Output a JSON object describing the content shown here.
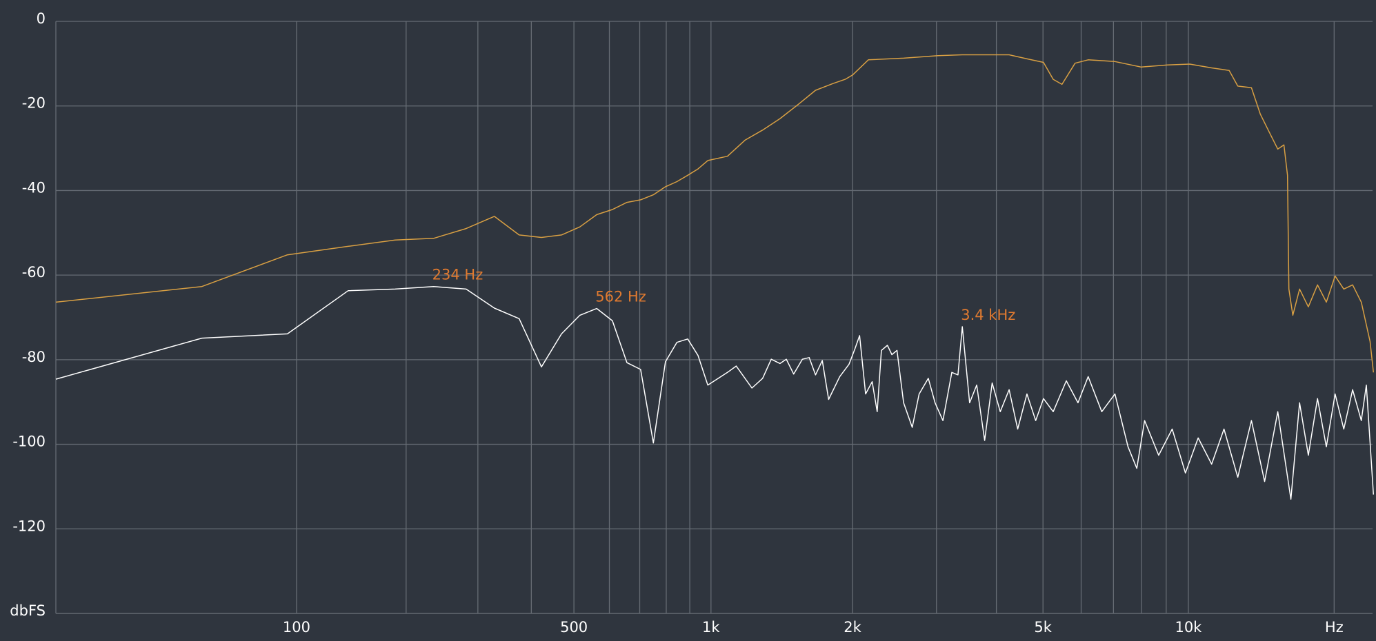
{
  "chart_data": {
    "type": "line",
    "xscale": "log",
    "xlim": [
      0,
      24000
    ],
    "ylim": [
      -140,
      0
    ],
    "xticks": [
      100,
      500,
      {
        "value": 1000,
        "label": "1k"
      },
      {
        "value": 2000,
        "label": "2k"
      },
      {
        "value": 5000,
        "label": "5k"
      },
      {
        "value": 10000,
        "label": "10k"
      },
      {
        "value": 20000,
        "label": "Hz"
      }
    ],
    "xminor": [
      200,
      300,
      400,
      600,
      700,
      800,
      900,
      3000,
      4000,
      6000,
      7000,
      8000,
      9000
    ],
    "yticks": [
      0,
      -20,
      -40,
      -60,
      -80,
      -100,
      -120,
      {
        "value": -140,
        "label": "dbFS"
      }
    ],
    "grid": true,
    "series": [
      {
        "color": "#d9a043",
        "x": [
          0,
          46.875,
          93.75,
          140.625,
          187.5,
          234.375,
          281.25,
          328.125,
          375,
          421.875,
          468.75,
          515.625,
          562.5,
          609.375,
          656.25,
          703.125,
          750,
          796.875,
          843.75,
          890.625,
          937.5,
          984.375,
          1085,
          1183,
          1290,
          1405,
          1533,
          1671,
          1819,
          1930,
          2000,
          2160,
          2561,
          3022,
          3397,
          3746,
          4252,
          4650,
          5011,
          5250,
          5474,
          5828,
          6205,
          7049,
          7988,
          9053,
          10069,
          11173,
          12143,
          12653,
          13500,
          14080,
          14680,
          15300,
          15755,
          16025,
          16133,
          16433,
          16973,
          17690,
          18483,
          19270,
          20093,
          20940,
          21833,
          22750,
          23720,
          24103
        ],
        "values": [
          -66.4,
          -62.7,
          -55.2,
          -53.2,
          -51.7,
          -51.3,
          -49.0,
          -46.1,
          -50.5,
          -51.1,
          -50.5,
          -48.6,
          -45.7,
          -44.5,
          -42.8,
          -42.2,
          -41.0,
          -39.1,
          -37.9,
          -36.4,
          -34.9,
          -32.9,
          -31.9,
          -28.1,
          -25.7,
          -23.0,
          -19.7,
          -16.3,
          -14.7,
          -13.7,
          -12.7,
          -9.1,
          -8.7,
          -8.1,
          -7.9,
          -7.9,
          -7.9,
          -8.9,
          -9.7,
          -13.7,
          -14.9,
          -9.9,
          -9.1,
          -9.5,
          -10.8,
          -10.3,
          -10.1,
          -11.0,
          -11.6,
          -15.3,
          -15.7,
          -21.9,
          -26.1,
          -30.2,
          -29.2,
          -36.4,
          -63.3,
          -69.5,
          -63.3,
          -67.5,
          -62.3,
          -66.4,
          -60.2,
          -63.3,
          -62.3,
          -66.4,
          -75.7,
          -83.0
        ]
      },
      {
        "color": "#ffffff",
        "x": [
          0,
          46.875,
          93.75,
          140.625,
          187.5,
          234.375,
          281.25,
          328.125,
          375,
          421.875,
          468.75,
          515.625,
          562.5,
          609.375,
          656.25,
          703.125,
          750,
          796.875,
          843.75,
          890.625,
          937.5,
          984.375,
          1085,
          1133,
          1224,
          1290,
          1346,
          1405,
          1449,
          1502,
          1567,
          1620,
          1671,
          1727,
          1781,
          1880,
          1966,
          2024,
          2070,
          2131,
          2200,
          2254,
          2300,
          2368,
          2420,
          2480,
          2561,
          2669,
          2760,
          2884,
          2980,
          3094,
          3230,
          3326,
          3397,
          3518,
          3640,
          3781,
          3920,
          4074,
          4252,
          4430,
          4630,
          4828,
          5011,
          5250,
          5589,
          5910,
          6205,
          6621,
          7049,
          7504,
          7823,
          8120,
          8683,
          9260,
          9863,
          10480,
          11173,
          11850,
          12653,
          13500,
          14373,
          15300,
          16283,
          16973,
          17690,
          18483,
          19270,
          20093,
          20940,
          21833,
          22750,
          23300,
          24103
        ],
        "values": [
          -84.6,
          -74.9,
          -73.9,
          -63.7,
          -63.3,
          -62.7,
          -63.3,
          -67.8,
          -70.3,
          -81.7,
          -73.9,
          -69.5,
          -67.9,
          -70.8,
          -80.7,
          -82.3,
          -99.7,
          -80.5,
          -75.9,
          -75.1,
          -79.0,
          -86.0,
          -83.0,
          -81.5,
          -86.7,
          -84.4,
          -79.9,
          -80.9,
          -79.9,
          -83.4,
          -79.9,
          -79.5,
          -83.6,
          -80.2,
          -89.4,
          -84.0,
          -81.1,
          -77.4,
          -74.3,
          -88.1,
          -85.2,
          -92.3,
          -77.8,
          -76.6,
          -78.8,
          -77.8,
          -90.2,
          -96.0,
          -88.1,
          -84.4,
          -90.2,
          -94.4,
          -83.0,
          -83.6,
          -72.2,
          -90.2,
          -86.0,
          -99.1,
          -85.5,
          -92.3,
          -87.1,
          -96.4,
          -88.1,
          -94.4,
          -89.2,
          -92.3,
          -85.0,
          -90.2,
          -84.0,
          -92.3,
          -88.1,
          -100.6,
          -105.7,
          -94.4,
          -102.6,
          -96.4,
          -106.8,
          -98.5,
          -104.7,
          -96.4,
          -107.8,
          -94.4,
          -108.8,
          -92.3,
          -113.0,
          -90.2,
          -102.6,
          -89.2,
          -100.6,
          -88.1,
          -96.4,
          -87.1,
          -94.4,
          -86.0,
          -111.9
        ]
      }
    ],
    "annotations": [
      {
        "text": "234 Hz",
        "x": 234.375,
        "y": -62.7
      },
      {
        "text": "562 Hz",
        "x": 562.5,
        "y": -67.9
      },
      {
        "text": "3.4 kHz",
        "x": 3397,
        "y": -72.2
      }
    ]
  }
}
